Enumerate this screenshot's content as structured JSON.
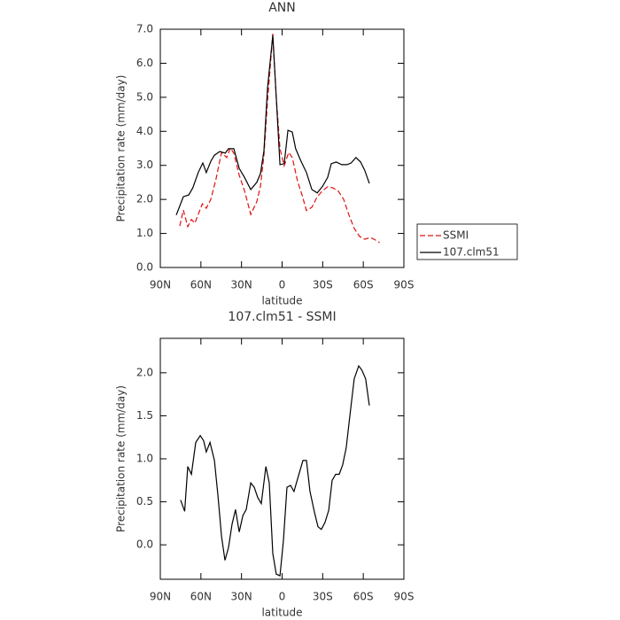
{
  "chart_data": [
    {
      "type": "line",
      "title": "ANN",
      "xlabel": "latitude",
      "ylabel": "Precipitation rate (mm/day)",
      "xlim": [
        90,
        -90
      ],
      "xticks": [
        {
          "value": 90,
          "label": "90N"
        },
        {
          "value": 60,
          "label": "60N"
        },
        {
          "value": 30,
          "label": "30N"
        },
        0,
        {
          "value": -30,
          "label": "30S"
        },
        {
          "value": -60,
          "label": "60S"
        },
        {
          "value": -90,
          "label": "90S"
        }
      ],
      "ylim": [
        0,
        7
      ],
      "yticks": [
        {
          "value": 0,
          "label": "0.0"
        },
        {
          "value": 1,
          "label": "1.0"
        },
        {
          "value": 2,
          "label": "2.0"
        },
        {
          "value": 3,
          "label": "3.0"
        },
        {
          "value": 4,
          "label": "4.0"
        },
        {
          "value": 5,
          "label": "5.0"
        },
        {
          "value": 6,
          "label": "6.0"
        },
        {
          "value": 7,
          "label": "7.0"
        }
      ],
      "legend": "right",
      "series": [
        {
          "name": "SSMI",
          "color": "#e01010",
          "style": "dashed",
          "x": [
            75.6,
            73,
            69.7,
            67,
            64.5,
            59,
            56,
            52.7,
            48.8,
            44.8,
            40.9,
            38.3,
            35.7,
            31.7,
            27.8,
            23.2,
            18.7,
            16,
            13.4,
            10.8,
            6.9,
            4.3,
            1.6,
            -1.6,
            -4.9,
            -7.5,
            -11.5,
            -14.7,
            -18,
            -22,
            -26,
            -30,
            -33.7,
            -37.6,
            -41.6,
            -45.5,
            -49.4,
            -53.3,
            -57.3,
            -61,
            -65,
            -68,
            -72
          ],
          "values": [
            1.22,
            1.69,
            1.2,
            1.41,
            1.3,
            1.87,
            1.74,
            2.0,
            2.6,
            3.38,
            3.23,
            3.51,
            3.36,
            2.71,
            2.26,
            1.56,
            1.93,
            2.39,
            3.3,
            4.87,
            6.87,
            5.0,
            3.49,
            2.99,
            3.38,
            3.23,
            2.52,
            2.13,
            1.67,
            1.77,
            2.08,
            2.26,
            2.37,
            2.34,
            2.24,
            2.0,
            1.54,
            1.15,
            0.91,
            0.83,
            0.88,
            0.83,
            0.73
          ]
        },
        {
          "name": "107.clm51",
          "color": "#000000",
          "style": "solid",
          "x": [
            78.2,
            73,
            69,
            66,
            62,
            58.6,
            56,
            52.7,
            50,
            46,
            42,
            39.6,
            35.7,
            31.7,
            27.8,
            23.2,
            18.7,
            16,
            13.4,
            10.8,
            6.9,
            4.3,
            1.6,
            -1.6,
            -4.3,
            -7.5,
            -10,
            -14,
            -18,
            -22,
            -26,
            -30,
            -33.7,
            -36.3,
            -40,
            -44,
            -48,
            -51,
            -54.6,
            -58,
            -61,
            -64.5
          ],
          "values": [
            1.54,
            2.08,
            2.13,
            2.34,
            2.79,
            3.07,
            2.79,
            3.12,
            3.3,
            3.41,
            3.36,
            3.49,
            3.49,
            2.91,
            2.65,
            2.29,
            2.5,
            2.76,
            3.43,
            5.26,
            6.82,
            5.0,
            3.02,
            3.05,
            4.03,
            3.98,
            3.49,
            3.12,
            2.79,
            2.29,
            2.19,
            2.39,
            2.65,
            3.05,
            3.1,
            3.02,
            3.02,
            3.07,
            3.23,
            3.1,
            2.86,
            2.47
          ]
        }
      ]
    },
    {
      "type": "line",
      "title": "107.clm51 - SSMI",
      "xlabel": "latitude",
      "ylabel": "Precipitation rate (mm/day)",
      "xlim": [
        90,
        -90
      ],
      "xticks": [
        {
          "value": 90,
          "label": "90N"
        },
        {
          "value": 60,
          "label": "60N"
        },
        {
          "value": 30,
          "label": "30N"
        },
        0,
        {
          "value": -30,
          "label": "30S"
        },
        {
          "value": -60,
          "label": "60S"
        },
        {
          "value": -90,
          "label": "90S"
        }
      ],
      "ylim": [
        -0.4,
        2.4
      ],
      "yticks": [
        {
          "value": 0,
          "label": "0.0"
        },
        {
          "value": 0.5,
          "label": "0.5"
        },
        {
          "value": 1,
          "label": "1.0"
        },
        {
          "value": 1.5,
          "label": "1.5"
        },
        {
          "value": 2,
          "label": "2.0"
        }
      ],
      "series": [
        {
          "color": "#000000",
          "style": "solid",
          "x": [
            75,
            72,
            69.7,
            67,
            63.8,
            60.5,
            58,
            56,
            53.3,
            50,
            47.4,
            44.8,
            42.2,
            39.6,
            37,
            34.4,
            31.7,
            29,
            26.5,
            23.2,
            20.6,
            18,
            15.4,
            12,
            9.5,
            6.9,
            4.3,
            1.6,
            -1,
            -3.6,
            -6.2,
            -8.8,
            -11.5,
            -15.4,
            -18,
            -20.6,
            -23.9,
            -26.5,
            -29,
            -31.7,
            -34.4,
            -37,
            -39.6,
            -42.2,
            -44.8,
            -47.4,
            -50,
            -53.3,
            -56.6,
            -59,
            -61.7,
            -64.5
          ],
          "values": [
            0.52,
            0.39,
            0.91,
            0.82,
            1.19,
            1.27,
            1.21,
            1.08,
            1.19,
            0.98,
            0.57,
            0.1,
            -0.18,
            -0.03,
            0.24,
            0.41,
            0.15,
            0.34,
            0.41,
            0.72,
            0.67,
            0.55,
            0.48,
            0.91,
            0.72,
            -0.1,
            -0.34,
            -0.36,
            0.05,
            0.67,
            0.69,
            0.62,
            0.77,
            0.98,
            0.98,
            0.62,
            0.38,
            0.21,
            0.18,
            0.26,
            0.4,
            0.75,
            0.82,
            0.82,
            0.93,
            1.13,
            1.49,
            1.93,
            2.08,
            2.03,
            1.93,
            1.62
          ]
        }
      ]
    }
  ]
}
